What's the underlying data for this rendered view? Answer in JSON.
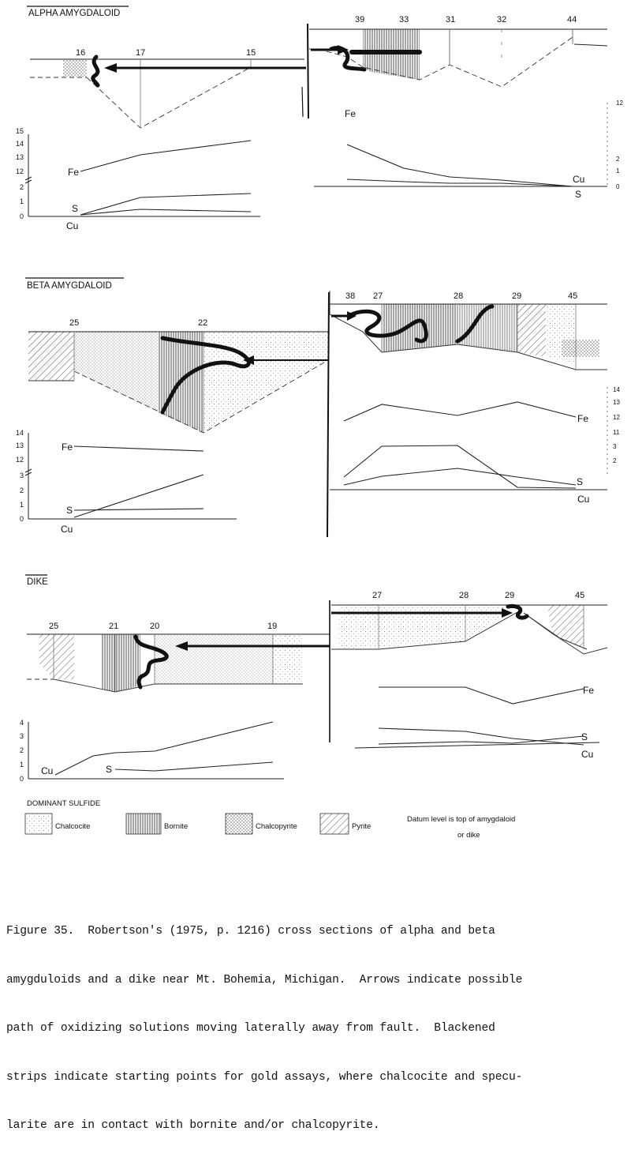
{
  "sections": {
    "alpha": {
      "title": "ALPHA AMYGDALOID",
      "west_labels": [
        "16",
        "17",
        "15"
      ],
      "east_labels": [
        "39",
        "33",
        "31",
        "32",
        "44"
      ],
      "west_chem": {
        "fe": "Fe",
        "s": "S",
        "cu": "Cu",
        "ticks": [
          "15",
          "14",
          "13",
          "12",
          "2",
          "1",
          "0"
        ]
      },
      "east_chem": {
        "fe": "Fe",
        "cu": "Cu",
        "s": "S",
        "ticks": [
          "12",
          "2",
          "1",
          "0"
        ]
      }
    },
    "beta": {
      "title": "BETA AMYGDALOID",
      "west_labels": [
        "25",
        "22"
      ],
      "east_labels": [
        "38",
        "27",
        "28",
        "29",
        "45"
      ],
      "west_chem": {
        "fe": "Fe",
        "s": "S",
        "cu": "Cu",
        "ticks": [
          "14",
          "13",
          "12",
          "3",
          "2",
          "1",
          "0"
        ]
      },
      "east_chem": {
        "fe": "Fe",
        "s": "S",
        "cu": "Cu",
        "ticks": [
          "14",
          "13",
          "12",
          "11",
          "3",
          "2"
        ]
      }
    },
    "dike": {
      "title": "DIKE",
      "west_labels": [
        "25",
        "21",
        "20",
        "19"
      ],
      "east_labels": [
        "27",
        "28",
        "29",
        "45"
      ],
      "west_chem": {
        "cu": "Cu",
        "s": "S",
        "ticks": [
          "4",
          "3",
          "2",
          "1",
          "0"
        ]
      },
      "east_chem": {
        "fe": "Fe",
        "s": "S",
        "cu": "Cu"
      }
    }
  },
  "legend": {
    "title": "DOMINANT SULFIDE",
    "items": [
      "Chalcocite",
      "Bornite",
      "Chalcopyrite",
      "Pyrite"
    ],
    "datum_note_1": "Datum level is top of amygdaloid",
    "datum_note_2": "or dike"
  },
  "caption": {
    "line1": "Figure 35.  Robertson's (1975, p. 1216) cross sections of alpha and beta",
    "line2": "amygduloids and a dike near Mt. Bohemia, Michigan.  Arrows indicate possible",
    "line3": "path of oxidizing solutions moving laterally away from fault.  Blackened",
    "line4": "strips indicate starting points for gold assays, where chalcocite and specu-",
    "line5": "larite are in contact with bornite and/or chalcopyrite."
  }
}
